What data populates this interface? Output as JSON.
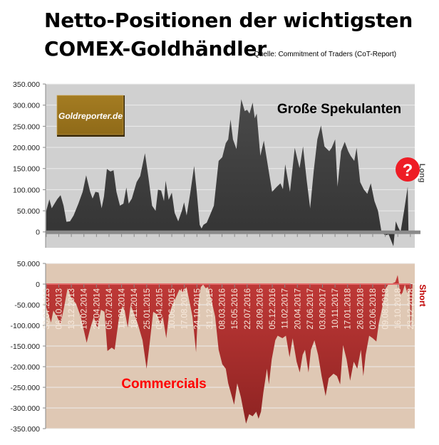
{
  "title_line1": "Netto-Positionen der wichtigsten",
  "title_line2": "COMEX-Goldhändler",
  "source": "Quelle: Commitment of Traders (CoT-Report)",
  "logo_text": "Goldreporter.de",
  "colors": {
    "top_bg": "#d0d0d0",
    "top_fill": "#3f3f3f",
    "bottom_bg": "#dfc8b4",
    "bottom_fill": "#b0302f",
    "commercials_label": "#ff0000",
    "short_label": "#c00000",
    "question_badge": "#ee1c25"
  },
  "chart_data": [
    {
      "type": "area",
      "title": "Große Spekulanten",
      "side_label": "Long",
      "badge": "?",
      "x_unit": "weeks since 30.07.2013",
      "xlim": [
        -0.5,
        293.5
      ],
      "ylim": [
        -37500,
        350000
      ],
      "yticks": [
        350000,
        300000,
        250000,
        200000,
        150000,
        100000,
        50000,
        0
      ],
      "ytick_labels": [
        "350.000",
        "300.000",
        "250.000",
        "200.000",
        "150.000",
        "100.000",
        "50.000",
        "0"
      ],
      "grid": true,
      "series": [
        {
          "name": "Große Spekulanten",
          "points": [
            [
              0,
              50000
            ],
            [
              2.5,
              77000
            ],
            [
              4.4,
              56000
            ],
            [
              6.6,
              67000
            ],
            [
              8.9,
              78000
            ],
            [
              11.4,
              87000
            ],
            [
              13.8,
              62000
            ],
            [
              16.1,
              24000
            ],
            [
              18.9,
              25000
            ],
            [
              21.8,
              39000
            ],
            [
              25.6,
              67000
            ],
            [
              29,
              95000
            ],
            [
              31.8,
              134000
            ],
            [
              35,
              95000
            ],
            [
              36.9,
              79000
            ],
            [
              39.2,
              95000
            ],
            [
              41.7,
              93000
            ],
            [
              44.1,
              56000
            ],
            [
              46,
              84000
            ],
            [
              48.3,
              149000
            ],
            [
              51.1,
              143000
            ],
            [
              53.6,
              146000
            ],
            [
              55.9,
              95000
            ],
            [
              58.7,
              62000
            ],
            [
              61.5,
              67000
            ],
            [
              63.8,
              105000
            ],
            [
              65.7,
              67000
            ],
            [
              68.2,
              79000
            ],
            [
              72,
              118000
            ],
            [
              74.8,
              132000
            ],
            [
              78.6,
              186000
            ],
            [
              81.4,
              129000
            ],
            [
              84.3,
              62000
            ],
            [
              87.1,
              50000
            ],
            [
              89,
              100000
            ],
            [
              91.5,
              98000
            ],
            [
              93.8,
              73000
            ],
            [
              95.1,
              121000
            ],
            [
              97.5,
              76000
            ],
            [
              100,
              93000
            ],
            [
              102.3,
              45000
            ],
            [
              105.1,
              25000
            ],
            [
              108,
              50000
            ],
            [
              109.8,
              70000
            ],
            [
              111.8,
              39000
            ],
            [
              114.6,
              90000
            ],
            [
              117.8,
              156000
            ],
            [
              119.9,
              95000
            ],
            [
              122.2,
              17000
            ],
            [
              123.7,
              8000
            ],
            [
              125.2,
              17000
            ],
            [
              127.8,
              22000
            ],
            [
              130.7,
              42000
            ],
            [
              133.5,
              62000
            ],
            [
              137.3,
              168000
            ],
            [
              140.2,
              177000
            ],
            [
              143,
              210000
            ],
            [
              144.9,
              219000
            ],
            [
              146.8,
              266000
            ],
            [
              148.7,
              219000
            ],
            [
              151.5,
              196000
            ],
            [
              155.3,
              314000
            ],
            [
              158.1,
              286000
            ],
            [
              160,
              289000
            ],
            [
              161.9,
              280000
            ],
            [
              164.4,
              306000
            ],
            [
              166.1,
              269000
            ],
            [
              167.6,
              280000
            ],
            [
              170.5,
              180000
            ],
            [
              173.3,
              216000
            ],
            [
              177.1,
              146000
            ],
            [
              179.9,
              95000
            ],
            [
              183.7,
              107000
            ],
            [
              186.5,
              115000
            ],
            [
              188.5,
              101000
            ],
            [
              190.3,
              160000
            ],
            [
              194.1,
              95000
            ],
            [
              197.9,
              199000
            ],
            [
              201.7,
              151000
            ],
            [
              204.5,
              202000
            ],
            [
              207.4,
              123000
            ],
            [
              210.2,
              56000
            ],
            [
              213.1,
              146000
            ],
            [
              215.9,
              219000
            ],
            [
              218.8,
              252000
            ],
            [
              221.6,
              202000
            ],
            [
              225.4,
              191000
            ],
            [
              227.3,
              199000
            ],
            [
              230.1,
              219000
            ],
            [
              232,
              107000
            ],
            [
              234.8,
              191000
            ],
            [
              237.7,
              213000
            ],
            [
              240.5,
              191000
            ],
            [
              242.4,
              180000
            ],
            [
              245.3,
              168000
            ],
            [
              247.2,
              199000
            ],
            [
              250,
              118000
            ],
            [
              252.8,
              101000
            ],
            [
              255.7,
              90000
            ],
            [
              258.5,
              115000
            ],
            [
              261.4,
              73000
            ],
            [
              264.2,
              50000
            ],
            [
              267,
              0
            ],
            [
              269.9,
              -8000
            ],
            [
              272.7,
              -6000
            ],
            [
              276.5,
              -34000
            ],
            [
              278.4,
              25000
            ],
            [
              280.3,
              11000
            ],
            [
              282.2,
              0
            ],
            [
              285,
              50000
            ],
            [
              287.9,
              107000
            ],
            [
              288.5,
              0
            ]
          ]
        }
      ]
    },
    {
      "type": "area",
      "title": "Commercials",
      "side_label": "Short",
      "x_unit": "weeks since 30.07.2013",
      "xlim": [
        -0.5,
        293.5
      ],
      "ylim": [
        -350000,
        50000
      ],
      "yticks": [
        50000,
        0,
        -50000,
        -100000,
        -150000,
        -200000,
        -250000,
        -300000,
        -350000
      ],
      "ytick_labels": [
        "50.000",
        "0",
        "-50.000",
        "-100.000",
        "-150.000",
        "-200.000",
        "-250.000",
        "-300.000",
        "-350.000"
      ],
      "xticks": [
        0,
        10,
        20,
        30,
        40,
        50,
        60,
        70,
        80,
        90,
        100,
        110,
        120,
        130,
        140,
        150,
        160,
        170,
        180,
        190,
        200,
        210,
        220,
        230,
        240,
        250,
        260,
        270,
        280,
        290
      ],
      "xtick_labels": [
        "30.07.2013",
        "06.10.2013",
        "13.12.2013",
        "19.02.2014",
        "28.04.2014",
        "05.07.2014",
        "11.09.2014",
        "18.11.2014",
        "25.01.2015",
        "03.04.2015",
        "10.06.2015",
        "17.08.2015",
        "24.10.2015",
        "31.12.2015",
        "08.03.2016",
        "15.05.2016",
        "22.07.2016",
        "28.09.2016",
        "05.12.2016",
        "11.02.2017",
        "20.04.2017",
        "27.06.2017",
        "03.09.2017",
        "10.11.2017",
        "17.01.2018",
        "26.03.2018",
        "02.06.2018",
        "09.08.2018",
        "16.10.2018",
        "23.12.2018"
      ],
      "grid": true,
      "series": [
        {
          "name": "Commercials",
          "points": [
            [
              0,
              -56000
            ],
            [
              3.8,
              -93000
            ],
            [
              5.7,
              -64000
            ],
            [
              8.5,
              -79000
            ],
            [
              11.4,
              -96000
            ],
            [
              14.2,
              -56000
            ],
            [
              17,
              -10000
            ],
            [
              19.9,
              -33000
            ],
            [
              23.7,
              -47000
            ],
            [
              27.5,
              -79000
            ],
            [
              32.2,
              -142000
            ],
            [
              35,
              -108000
            ],
            [
              37.9,
              -79000
            ],
            [
              40.7,
              -108000
            ],
            [
              43.6,
              -62000
            ],
            [
              46.4,
              -67000
            ],
            [
              48.7,
              -162000
            ],
            [
              52.1,
              -154000
            ],
            [
              54.5,
              -159000
            ],
            [
              57.8,
              -85000
            ],
            [
              60.6,
              -53000
            ],
            [
              62.5,
              -64000
            ],
            [
              64.9,
              -105000
            ],
            [
              67.2,
              -50000
            ],
            [
              70.1,
              -73000
            ],
            [
              72.9,
              -96000
            ],
            [
              76.7,
              -136000
            ],
            [
              79.9,
              -205000
            ],
            [
              82.4,
              -142000
            ],
            [
              85.2,
              -67000
            ],
            [
              88.1,
              -73000
            ],
            [
              90.9,
              -96000
            ],
            [
              92.8,
              -79000
            ],
            [
              95.6,
              -131000
            ],
            [
              97.5,
              -79000
            ],
            [
              100.4,
              -50000
            ],
            [
              103.2,
              -33000
            ],
            [
              106.1,
              -13000
            ],
            [
              108.9,
              -21000
            ],
            [
              111.7,
              -7000
            ],
            [
              114.6,
              -50000
            ],
            [
              116.5,
              -79000
            ],
            [
              119.3,
              -165000
            ],
            [
              121.2,
              -44000
            ],
            [
              123.1,
              -7000
            ],
            [
              125,
              -1000
            ],
            [
              126.9,
              -10000
            ],
            [
              128.8,
              -7000
            ],
            [
              131.6,
              -39000
            ],
            [
              134.5,
              -79000
            ],
            [
              137.3,
              -159000
            ],
            [
              140.2,
              -194000
            ],
            [
              143,
              -205000
            ],
            [
              144.9,
              -240000
            ],
            [
              149.6,
              -292000
            ],
            [
              152.1,
              -240000
            ],
            [
              155,
              -274000
            ],
            [
              159.1,
              -338000
            ],
            [
              161.6,
              -315000
            ],
            [
              164.4,
              -320000
            ],
            [
              167.2,
              -309000
            ],
            [
              169.1,
              -326000
            ],
            [
              171,
              -309000
            ],
            [
              172.9,
              -263000
            ],
            [
              175.8,
              -205000
            ],
            [
              177.3,
              -243000
            ],
            [
              179.6,
              -182000
            ],
            [
              182.4,
              -136000
            ],
            [
              184.3,
              -125000
            ],
            [
              188.1,
              -131000
            ],
            [
              190.9,
              -125000
            ],
            [
              193.8,
              -177000
            ],
            [
              196.2,
              -131000
            ],
            [
              199.4,
              -188000
            ],
            [
              201.9,
              -214000
            ],
            [
              204.2,
              -171000
            ],
            [
              206.1,
              -159000
            ],
            [
              208.9,
              -214000
            ],
            [
              210.8,
              -159000
            ],
            [
              213.6,
              -136000
            ],
            [
              216.5,
              -171000
            ],
            [
              219.3,
              -223000
            ],
            [
              222.5,
              -271000
            ],
            [
              225,
              -228000
            ],
            [
              228.8,
              -217000
            ],
            [
              231.6,
              -223000
            ],
            [
              234.1,
              -243000
            ],
            [
              236.4,
              -148000
            ],
            [
              239.2,
              -182000
            ],
            [
              242,
              -234000
            ],
            [
              244.9,
              -188000
            ],
            [
              247.7,
              -205000
            ],
            [
              250.6,
              -159000
            ],
            [
              252.5,
              -223000
            ],
            [
              254.4,
              -171000
            ],
            [
              257.2,
              -125000
            ],
            [
              260,
              -131000
            ],
            [
              262.9,
              -139000
            ],
            [
              264.8,
              -96000
            ],
            [
              267.6,
              -56000
            ],
            [
              270.5,
              -10000
            ],
            [
              272.4,
              -1000
            ],
            [
              276.1,
              2000
            ],
            [
              278,
              5000
            ],
            [
              279.9,
              22000
            ],
            [
              280.9,
              2000
            ],
            [
              281.8,
              -27000
            ],
            [
              283.7,
              -21000
            ],
            [
              285.6,
              -1000
            ],
            [
              287.5,
              -21000
            ],
            [
              289.4,
              -10000
            ],
            [
              290.3,
              -113000
            ],
            [
              291.7,
              0
            ]
          ]
        }
      ]
    }
  ]
}
